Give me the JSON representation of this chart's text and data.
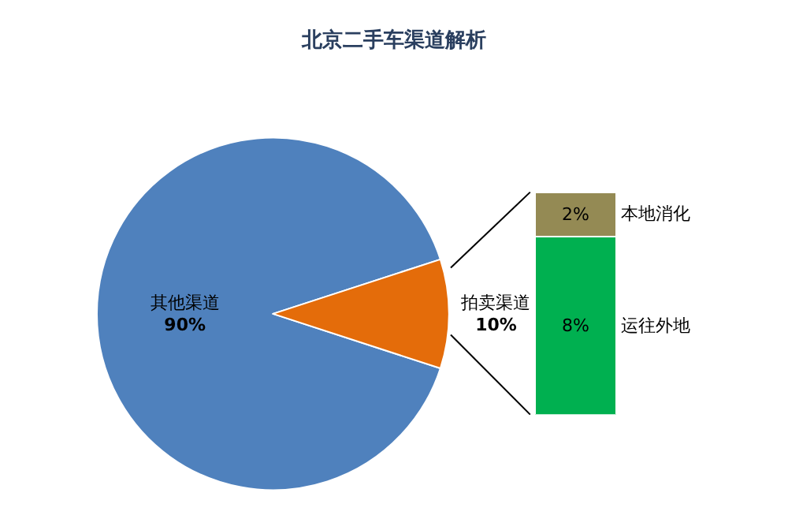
{
  "chart_data": [
    {
      "type": "pie",
      "title": "北京二手车渠道解析",
      "categories": [
        "其他渠道",
        "拍卖渠道"
      ],
      "values": [
        90,
        10
      ],
      "colors": [
        "#4f81bd",
        "#e46c0a"
      ],
      "value_labels": [
        "90%",
        "10%"
      ]
    },
    {
      "type": "bar",
      "stacked": true,
      "categories": [
        null
      ],
      "legend": false,
      "series": [
        {
          "name": "运往外地",
          "color": "#00b050",
          "values": [
            8
          ],
          "value_labels": [
            "8%"
          ]
        },
        {
          "name": "本地消化",
          "color": "#948a54",
          "values": [
            2
          ],
          "value_labels": [
            "2%"
          ]
        }
      ]
    }
  ]
}
